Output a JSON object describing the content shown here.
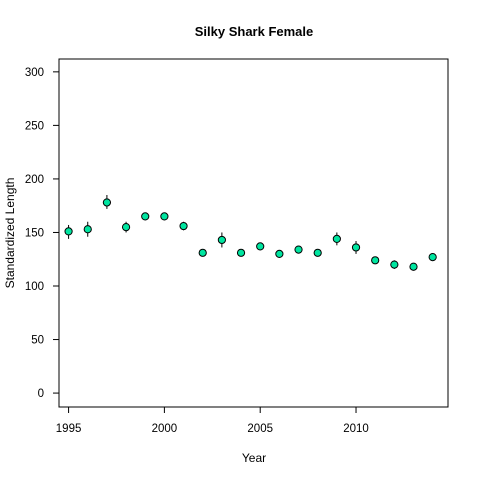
{
  "chart_data": {
    "type": "scatter",
    "title": "Silky Shark Female",
    "xlabel": "Year",
    "ylabel": "Standardized Length",
    "xlim": [
      1994.5,
      2014.8
    ],
    "ylim": [
      -13,
      312
    ],
    "xticks": [
      1995,
      2000,
      2005,
      2010
    ],
    "yticks": [
      0,
      50,
      100,
      150,
      200,
      250,
      300
    ],
    "grid": false,
    "legend": "none",
    "marker_color": "#00E5A0",
    "marker_edge_color": "#000000",
    "series": [
      {
        "points": [
          {
            "x": 1995,
            "y": 151,
            "lo": 144,
            "hi": 157
          },
          {
            "x": 1996,
            "y": 153,
            "lo": 146,
            "hi": 160
          },
          {
            "x": 1997,
            "y": 178,
            "lo": 172,
            "hi": 185
          },
          {
            "x": 1998,
            "y": 155,
            "lo": 150,
            "hi": 160
          },
          {
            "x": 1999,
            "y": 165,
            "lo": 163,
            "hi": 167
          },
          {
            "x": 2000,
            "y": 165,
            "lo": 163,
            "hi": 167
          },
          {
            "x": 2001,
            "y": 156,
            "lo": 152,
            "hi": 160
          },
          {
            "x": 2002,
            "y": 131,
            "lo": 129,
            "hi": 133
          },
          {
            "x": 2003,
            "y": 143,
            "lo": 136,
            "hi": 150
          },
          {
            "x": 2004,
            "y": 131,
            "lo": 128,
            "hi": 134
          },
          {
            "x": 2005,
            "y": 137,
            "lo": 134,
            "hi": 140
          },
          {
            "x": 2006,
            "y": 130,
            "lo": 128,
            "hi": 132
          },
          {
            "x": 2007,
            "y": 134,
            "lo": 131,
            "hi": 137
          },
          {
            "x": 2008,
            "y": 131,
            "lo": 128,
            "hi": 134
          },
          {
            "x": 2009,
            "y": 144,
            "lo": 138,
            "hi": 150
          },
          {
            "x": 2010,
            "y": 136,
            "lo": 130,
            "hi": 142
          },
          {
            "x": 2011,
            "y": 124,
            "lo": 122,
            "hi": 126
          },
          {
            "x": 2012,
            "y": 120,
            "lo": 116,
            "hi": 124
          },
          {
            "x": 2013,
            "y": 118,
            "lo": 116,
            "hi": 120
          },
          {
            "x": 2014,
            "y": 127,
            "lo": 124,
            "hi": 130
          }
        ]
      }
    ]
  }
}
